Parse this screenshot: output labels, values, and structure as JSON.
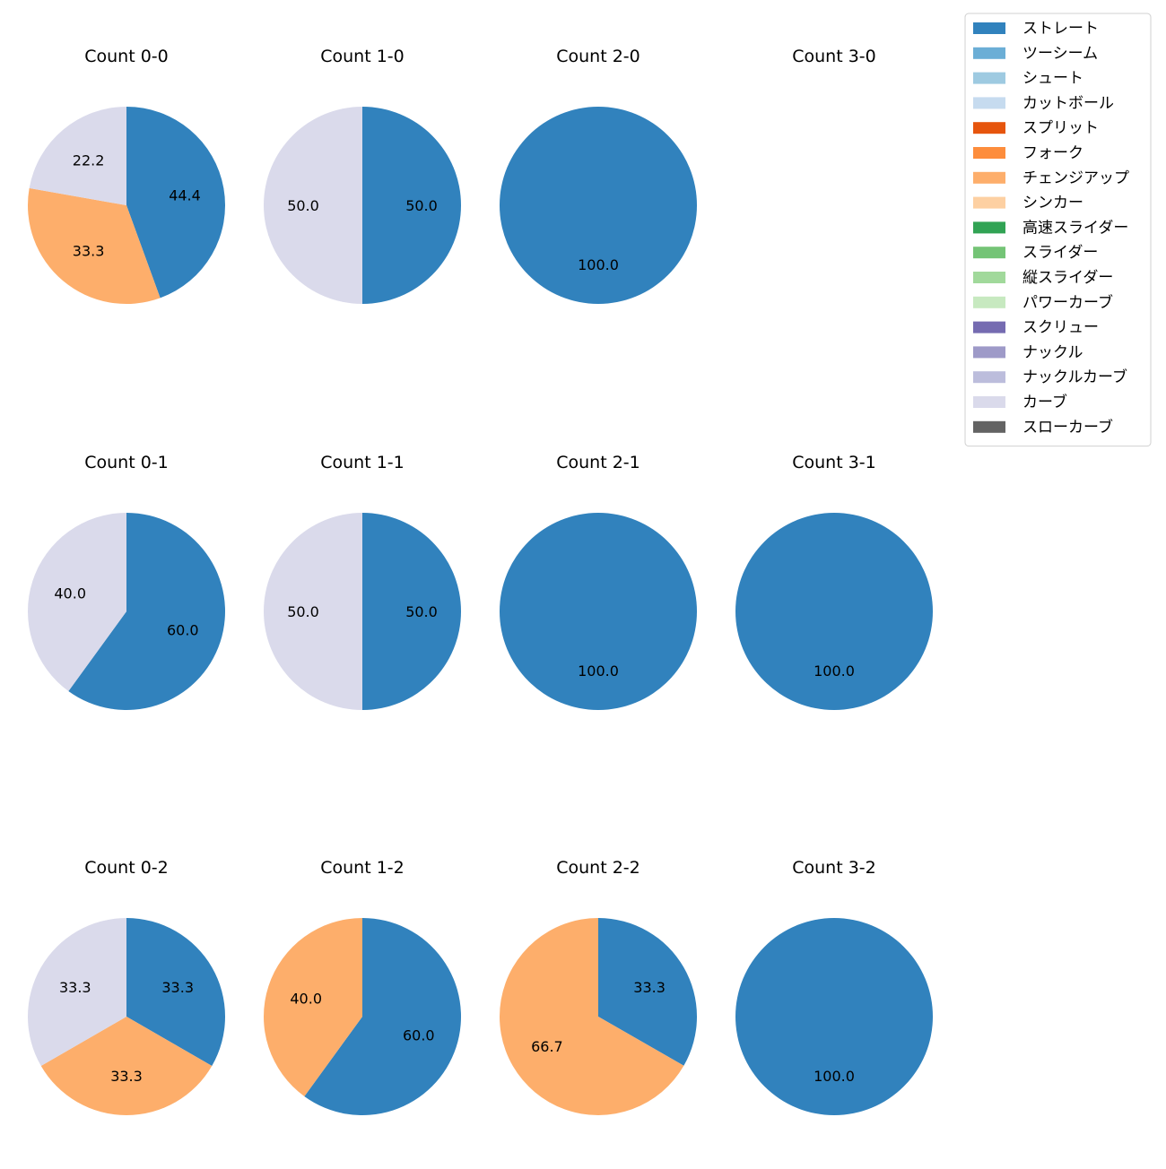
{
  "chart_data": {
    "type": "pie",
    "grid_layout": "3 rows x 4 columns of pie charts with a shared legend at top-right",
    "legend": [
      {
        "name": "ストレート",
        "color": "#3182bd"
      },
      {
        "name": "ツーシーム",
        "color": "#6baed6"
      },
      {
        "name": "シュート",
        "color": "#9ecae1"
      },
      {
        "name": "カットボール",
        "color": "#c6dbef"
      },
      {
        "name": "スプリット",
        "color": "#e6550d"
      },
      {
        "name": "フォーク",
        "color": "#fd8d3c"
      },
      {
        "name": "チェンジアップ",
        "color": "#fdae6b"
      },
      {
        "name": "シンカー",
        "color": "#fdd0a2"
      },
      {
        "name": "高速スライダー",
        "color": "#31a354"
      },
      {
        "name": "スライダー",
        "color": "#74c476"
      },
      {
        "name": "縦スライダー",
        "color": "#a1d99b"
      },
      {
        "name": "パワーカーブ",
        "color": "#c7e9c0"
      },
      {
        "name": "スクリュー",
        "color": "#756bb1"
      },
      {
        "name": "ナックル",
        "color": "#9e9ac8"
      },
      {
        "name": "ナックルカーブ",
        "color": "#bcbddc"
      },
      {
        "name": "カーブ",
        "color": "#dadaeb"
      },
      {
        "name": "スローカーブ",
        "color": "#636363"
      }
    ],
    "charts": [
      {
        "title": "Count 0-0",
        "slices": [
          {
            "pitch": "ストレート",
            "value": 44.4,
            "label": "44.4"
          },
          {
            "pitch": "チェンジアップ",
            "value": 33.3,
            "label": "33.3"
          },
          {
            "pitch": "カーブ",
            "value": 22.2,
            "label": "22.2"
          }
        ]
      },
      {
        "title": "Count 1-0",
        "slices": [
          {
            "pitch": "ストレート",
            "value": 50.0,
            "label": "50.0"
          },
          {
            "pitch": "カーブ",
            "value": 50.0,
            "label": "50.0"
          }
        ]
      },
      {
        "title": "Count 2-0",
        "slices": [
          {
            "pitch": "ストレート",
            "value": 100.0,
            "label": "100.0"
          }
        ]
      },
      {
        "title": "Count 3-0",
        "slices": []
      },
      {
        "title": "Count 0-1",
        "slices": [
          {
            "pitch": "ストレート",
            "value": 60.0,
            "label": "60.0"
          },
          {
            "pitch": "カーブ",
            "value": 40.0,
            "label": "40.0"
          }
        ]
      },
      {
        "title": "Count 1-1",
        "slices": [
          {
            "pitch": "ストレート",
            "value": 50.0,
            "label": "50.0"
          },
          {
            "pitch": "カーブ",
            "value": 50.0,
            "label": "50.0"
          }
        ]
      },
      {
        "title": "Count 2-1",
        "slices": [
          {
            "pitch": "ストレート",
            "value": 100.0,
            "label": "100.0"
          }
        ]
      },
      {
        "title": "Count 3-1",
        "slices": [
          {
            "pitch": "ストレート",
            "value": 100.0,
            "label": "100.0"
          }
        ]
      },
      {
        "title": "Count 0-2",
        "slices": [
          {
            "pitch": "ストレート",
            "value": 33.3,
            "label": "33.3"
          },
          {
            "pitch": "チェンジアップ",
            "value": 33.3,
            "label": "33.3"
          },
          {
            "pitch": "カーブ",
            "value": 33.3,
            "label": "33.3"
          }
        ]
      },
      {
        "title": "Count 1-2",
        "slices": [
          {
            "pitch": "ストレート",
            "value": 60.0,
            "label": "60.0"
          },
          {
            "pitch": "チェンジアップ",
            "value": 40.0,
            "label": "40.0"
          }
        ]
      },
      {
        "title": "Count 2-2",
        "slices": [
          {
            "pitch": "ストレート",
            "value": 33.3,
            "label": "33.3"
          },
          {
            "pitch": "チェンジアップ",
            "value": 66.7,
            "label": "66.7"
          }
        ]
      },
      {
        "title": "Count 3-2",
        "slices": [
          {
            "pitch": "ストレート",
            "value": 100.0,
            "label": "100.0"
          }
        ]
      }
    ]
  }
}
